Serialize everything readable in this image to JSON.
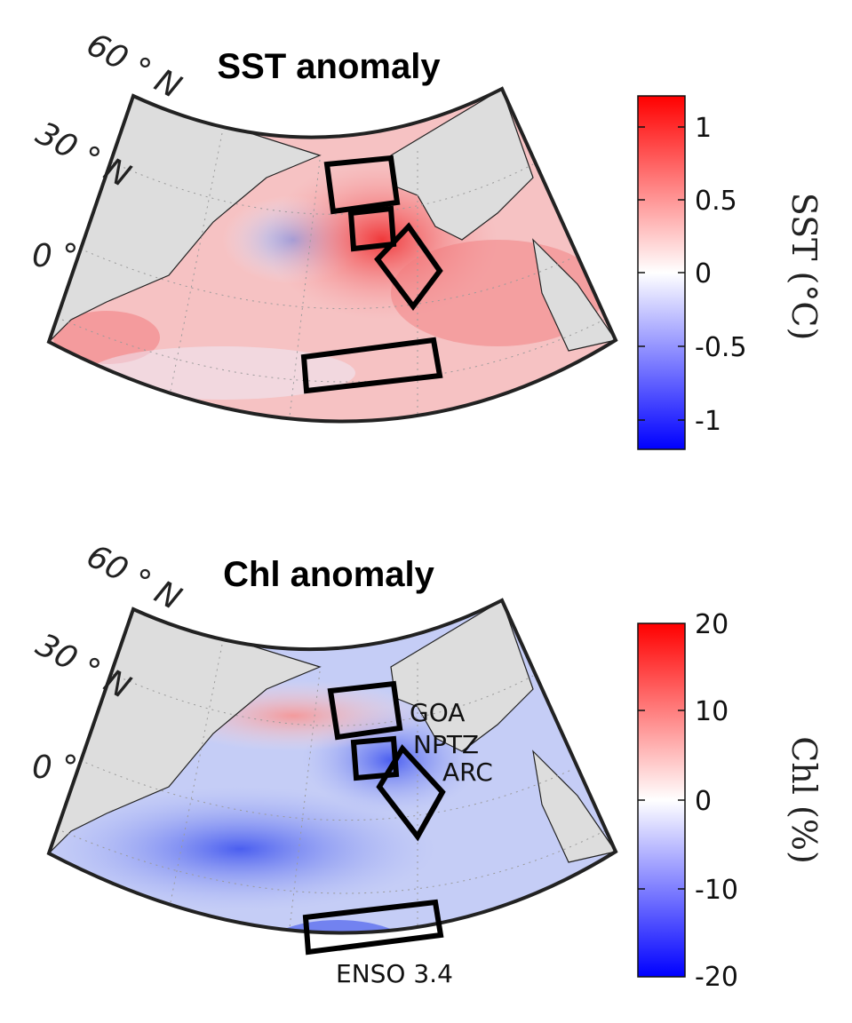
{
  "panels": [
    {
      "title": "SST anomaly",
      "lat_labels": [
        "60 ° N",
        "30 ° N",
        "0 °"
      ],
      "colorbar": {
        "label": "SST (°C)",
        "ticks": [
          "1",
          "0.5",
          "0",
          "-0.5",
          "-1"
        ],
        "min": -1.2,
        "max": 1.2,
        "colors": [
          "#0000ff",
          "#ffffff",
          "#ff0000"
        ]
      },
      "region_labels": []
    },
    {
      "title": "Chl anomaly",
      "lat_labels": [
        "60 ° N",
        "30 ° N",
        "0 °"
      ],
      "colorbar": {
        "label": "Chl (%)",
        "ticks": [
          "20",
          "10",
          "0",
          "-10",
          "-20"
        ],
        "min": -20,
        "max": 20,
        "colors": [
          "#0000ff",
          "#ffffff",
          "#ff0000"
        ]
      },
      "region_labels": [
        "GOA",
        "NPTZ",
        "ARC",
        "ENSO 3.4"
      ]
    }
  ]
}
